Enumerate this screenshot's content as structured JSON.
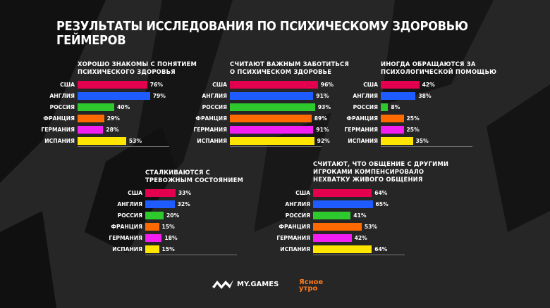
{
  "title": "РЕЗУЛЬТАТЫ ИССЛЕДОВАНИЯ ПО ПСИХИЧЕСКОМУ ЗДОРОВЬЮ ГЕЙМЕРОВ",
  "colors": {
    "США": "#e5004f",
    "Англия": "#1f5cff",
    "Россия": "#2dc92d",
    "Франция": "#ff6a00",
    "Германия": "#f21ef2",
    "Испания": "#ffe500"
  },
  "chart_data": [
    {
      "type": "bar",
      "orientation": "horizontal",
      "title": "ХОРОШО ЗНАКОМЫ С ПОНЯТИЕМ\nПСИХИЧЕСКОГО ЗДОРОВЬЯ",
      "categories": [
        "США",
        "АНГЛИЯ",
        "РОССИЯ",
        "ФРАНЦИЯ",
        "ГЕРМАНИЯ",
        "ИСПАНИЯ"
      ],
      "values": [
        76,
        79,
        40,
        29,
        28,
        53
      ],
      "unit": "%"
    },
    {
      "type": "bar",
      "orientation": "horizontal",
      "title": "СЧИТАЮТ ВАЖНЫМ ЗАБОТИТЬСЯ\nО ПСИХИЧЕСКОМ ЗДОРОВЬЕ",
      "categories": [
        "США",
        "АНГЛИЯ",
        "РОССИЯ",
        "ФРАНЦИЯ",
        "ГЕРМАНИЯ",
        "ИСПАНИЯ"
      ],
      "values": [
        96,
        91,
        93,
        89,
        91,
        92
      ],
      "unit": "%"
    },
    {
      "type": "bar",
      "orientation": "horizontal",
      "title": "ИНОГДА ОБРАЩАЮТСЯ ЗА\nПСИХОЛОГИЧЕСКОЙ ПОМОЩЬЮ",
      "categories": [
        "США",
        "АНГЛИЯ",
        "РОССИЯ",
        "ФРАНЦИЯ",
        "ГЕРМАНИЯ",
        "ИСПАНИЯ"
      ],
      "values": [
        42,
        38,
        8,
        25,
        25,
        35
      ],
      "unit": "%"
    },
    {
      "type": "bar",
      "orientation": "horizontal",
      "title": "СТАЛКИВАЮТСЯ С\nТРЕВОЖНЫМ СОСТОЯНИЕМ",
      "categories": [
        "США",
        "АНГЛИЯ",
        "РОССИЯ",
        "ФРАНЦИЯ",
        "ГЕРМАНИЯ",
        "ИСПАНИЯ"
      ],
      "values": [
        33,
        32,
        20,
        15,
        18,
        15
      ],
      "unit": "%"
    },
    {
      "type": "bar",
      "orientation": "horizontal",
      "title": "СЧИТАЮТ, ЧТО ОБЩЕНИЕ С ДРУГИМИ\nИГРОКАМИ КОМПЕНСИРОВАЛО\nНЕХВАТКУ ЖИВОГО ОБЩЕНИЯ",
      "categories": [
        "США",
        "АНГЛИЯ",
        "РОССИЯ",
        "ФРАНЦИЯ",
        "ГЕРМАНИЯ",
        "ИСПАНИЯ"
      ],
      "values": [
        64,
        65,
        41,
        53,
        42,
        64
      ],
      "unit": "%"
    }
  ],
  "logos": {
    "mygames": "MY.GAMES",
    "yasnoe_utro": "Ясное утро"
  }
}
